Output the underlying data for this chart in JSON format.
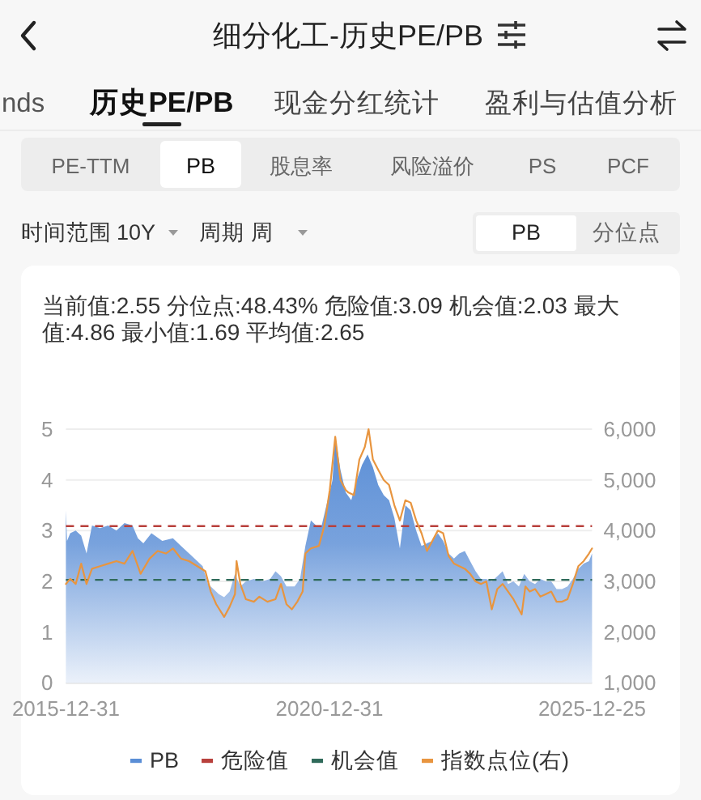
{
  "chart_data": {
    "type": "area",
    "title": "细分化工-历史PE/PB",
    "subtitle": "当前值:2.55 分位点:48.43% 危险值:3.09 机会值:2.03 最大值:4.86 最小值:1.69 平均值:2.65",
    "annotations": [
      "nds",
      "历史PE/PB",
      "现金分红统计",
      "盈利与估值分析",
      "PE-TTM",
      "PB",
      "股息率",
      "风险溢价",
      "PS",
      "PCF",
      "时间范围",
      "10Y",
      "周期",
      "周",
      "PB",
      "分位点"
    ],
    "xlim": [
      "2015-12-31",
      "2025-12-25"
    ],
    "xticks": [
      "2015-12-31",
      "2020-12-31",
      "2025-12-25"
    ],
    "ylim": [
      0,
      5
    ],
    "yticks": [
      0,
      1,
      2,
      3,
      4,
      5
    ],
    "y2lim": [
      1000,
      6000
    ],
    "y2ticks": [
      {
        "value": 1000,
        "label": "1,000"
      },
      {
        "value": 2000,
        "label": "2,000"
      },
      {
        "value": 3000,
        "label": "3,000"
      },
      {
        "value": 4000,
        "label": "4,000"
      },
      {
        "value": 5000,
        "label": "5,000"
      },
      {
        "value": 6000,
        "label": "6,000"
      }
    ],
    "grid": "y",
    "legend": "bottom",
    "ref_lines": [
      {
        "axis": "y",
        "value": 3.09,
        "label": "危险值",
        "color": "#b8403c",
        "line_style": "dashed"
      },
      {
        "axis": "y",
        "value": 2.03,
        "label": "机会值",
        "color": "#2f6a5a",
        "line_style": "dashed"
      }
    ],
    "series": [
      {
        "name": "PB",
        "color": "#5a8ed6",
        "x": [
          "2015-12-31",
          "2016-01-08",
          "2016-01-30",
          "2016-03-08",
          "2016-04-15",
          "2016-05-22",
          "2016-06-29",
          "2016-08-24",
          "2016-10-19",
          "2016-12-15",
          "2017-02-09",
          "2017-04-06",
          "2017-05-13",
          "2017-06-20",
          "2017-08-15",
          "2017-10-29",
          "2018-01-11",
          "2018-03-08",
          "2018-05-03",
          "2018-06-29",
          "2018-08-05",
          "2018-09-11",
          "2018-10-19",
          "2018-11-25",
          "2019-01-01",
          "2019-02-08",
          "2019-03-17",
          "2019-04-23",
          "2019-05-31",
          "2019-07-26",
          "2019-09-21",
          "2019-11-16",
          "2019-12-23",
          "2020-01-30",
          "2020-03-08",
          "2020-05-03",
          "2020-06-10",
          "2020-07-17",
          "2020-08-24",
          "2020-09-30",
          "2020-11-07",
          "2020-12-14",
          "2021-01-21",
          "2021-02-09",
          "2021-03-17",
          "2021-04-23",
          "2021-05-31",
          "2021-07-08",
          "2021-08-14",
          "2021-09-21",
          "2021-10-28",
          "2021-12-04",
          "2022-01-11",
          "2022-02-17",
          "2022-03-26",
          "2022-05-03",
          "2022-06-10",
          "2022-07-17",
          "2022-08-24",
          "2022-09-30",
          "2022-11-07",
          "2022-12-14",
          "2023-01-21",
          "2023-02-27",
          "2023-04-06",
          "2023-05-13",
          "2023-06-19",
          "2023-07-27",
          "2023-09-02",
          "2023-10-10",
          "2023-11-16",
          "2023-12-23",
          "2024-01-30",
          "2024-03-08",
          "2024-04-14",
          "2024-05-22",
          "2024-06-28",
          "2024-08-05",
          "2024-09-11",
          "2024-10-19",
          "2024-11-25",
          "2025-01-01",
          "2025-02-08",
          "2025-03-17",
          "2025-04-23",
          "2025-05-31",
          "2025-07-08",
          "2025-08-14",
          "2025-09-21",
          "2025-10-28",
          "2025-12-04",
          "2025-12-25"
        ],
        "values": [
          3.4,
          2.8,
          2.95,
          3.0,
          2.9,
          2.55,
          3.1,
          3.05,
          3.1,
          3.0,
          3.15,
          3.1,
          2.85,
          2.75,
          2.95,
          2.8,
          2.85,
          2.7,
          2.55,
          2.4,
          2.3,
          1.95,
          1.85,
          1.75,
          1.69,
          1.8,
          2.15,
          1.9,
          2.0,
          2.05,
          2.0,
          2.05,
          2.2,
          2.1,
          1.9,
          1.9,
          2.05,
          2.7,
          3.2,
          3.1,
          3.1,
          3.55,
          4.0,
          4.86,
          4.2,
          3.75,
          3.6,
          4.0,
          4.3,
          4.5,
          4.25,
          3.9,
          3.7,
          3.6,
          3.25,
          2.65,
          3.5,
          3.4,
          3.0,
          2.7,
          2.75,
          2.8,
          2.95,
          2.8,
          2.55,
          2.45,
          2.55,
          2.6,
          2.4,
          2.2,
          2.05,
          2.05,
          2.0,
          2.1,
          2.2,
          1.95,
          2.0,
          1.9,
          2.15,
          2.0,
          1.95,
          2.05,
          2.0,
          2.0,
          1.85,
          1.85,
          1.9,
          2.05,
          2.25,
          2.35,
          2.4,
          2.55
        ]
      },
      {
        "name": "指数点位(右)",
        "type": "line",
        "axis": "y2",
        "color": "#e8953f",
        "x": [
          "2015-12-31",
          "2016-01-30",
          "2016-03-08",
          "2016-04-15",
          "2016-05-22",
          "2016-06-29",
          "2016-08-24",
          "2016-10-19",
          "2016-12-15",
          "2017-02-09",
          "2017-04-06",
          "2017-06-01",
          "2017-08-02",
          "2017-09-27",
          "2017-11-23",
          "2018-01-11",
          "2018-03-08",
          "2018-05-03",
          "2018-06-29",
          "2018-08-24",
          "2018-09-30",
          "2018-11-07",
          "2019-01-01",
          "2019-02-08",
          "2019-03-17",
          "2019-03-28",
          "2019-04-23",
          "2019-05-31",
          "2019-07-26",
          "2019-09-02",
          "2019-10-28",
          "2019-12-23",
          "2020-01-30",
          "2020-03-08",
          "2020-04-14",
          "2020-05-22",
          "2020-06-28",
          "2020-07-17",
          "2020-08-24",
          "2020-10-19",
          "2020-11-26",
          "2021-01-02",
          "2021-02-09",
          "2021-03-17",
          "2021-04-23",
          "2021-05-12",
          "2021-06-19",
          "2021-07-26",
          "2021-09-02",
          "2021-09-28",
          "2021-10-28",
          "2021-12-04",
          "2022-01-11",
          "2022-02-17",
          "2022-03-26",
          "2022-05-03",
          "2022-06-10",
          "2022-07-17",
          "2022-08-24",
          "2022-09-30",
          "2022-11-07",
          "2022-12-14",
          "2023-01-21",
          "2023-02-27",
          "2023-04-06",
          "2023-05-13",
          "2023-06-19",
          "2023-07-27",
          "2023-09-02",
          "2023-10-10",
          "2023-11-16",
          "2023-12-23",
          "2024-01-30",
          "2024-03-08",
          "2024-04-14",
          "2024-05-22",
          "2024-06-28",
          "2024-08-24",
          "2024-09-19",
          "2024-10-19",
          "2024-11-25",
          "2025-01-01",
          "2025-02-08",
          "2025-03-17",
          "2025-04-23",
          "2025-05-31",
          "2025-07-08",
          "2025-08-14",
          "2025-09-21",
          "2025-10-28",
          "2025-12-04",
          "2025-12-25"
        ],
        "values": [
          2950,
          3050,
          2950,
          3350,
          2950,
          3250,
          3300,
          3350,
          3400,
          3350,
          3600,
          3150,
          3450,
          3600,
          3550,
          3650,
          3450,
          3400,
          3300,
          3200,
          2800,
          2550,
          2300,
          2500,
          2750,
          3400,
          2950,
          2650,
          2600,
          2700,
          2600,
          2650,
          2950,
          2550,
          2450,
          2600,
          2800,
          3550,
          3650,
          3700,
          4100,
          4800,
          5850,
          5000,
          4800,
          4750,
          4700,
          5400,
          5650,
          6000,
          5400,
          5200,
          5000,
          4900,
          4500,
          4200,
          4600,
          4550,
          4200,
          3950,
          3600,
          3800,
          4000,
          3950,
          3500,
          3350,
          3300,
          3250,
          3150,
          3000,
          2950,
          3000,
          2450,
          2850,
          2950,
          2800,
          2650,
          2350,
          2900,
          2800,
          2850,
          2700,
          2750,
          2800,
          2600,
          2600,
          2650,
          2950,
          3300,
          3400,
          3550,
          3650
        ]
      }
    ]
  }
}
